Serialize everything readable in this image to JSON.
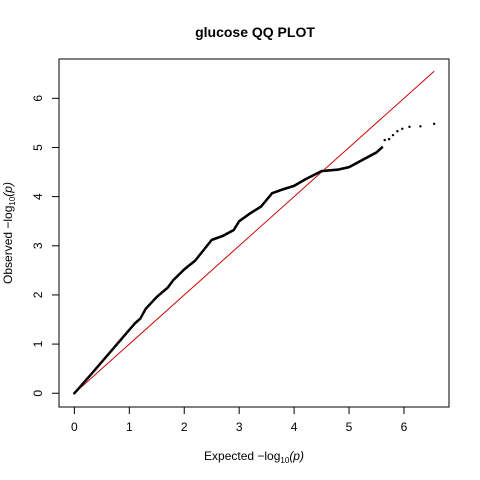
{
  "chart_data": {
    "type": "scatter",
    "title": "glucose QQ PLOT",
    "xlabel": {
      "prefix": "Expected  −log",
      "sub": "10",
      "suffix": "(p)"
    },
    "ylabel": {
      "prefix": "Observed  −log",
      "sub": "10",
      "suffix": "(p)"
    },
    "xlim": [
      -0.28,
      6.82
    ],
    "ylim": [
      -0.28,
      6.8
    ],
    "x_ticks": [
      0,
      1,
      2,
      3,
      4,
      5,
      6
    ],
    "y_ticks": [
      0,
      1,
      2,
      3,
      4,
      5,
      6
    ],
    "grid": false,
    "legend": "none",
    "reference_line": {
      "x": [
        0,
        6.55
      ],
      "y": [
        0,
        6.55
      ],
      "color": "#cc0000"
    },
    "points_color": "#000000",
    "observed_curve": {
      "x": [
        0,
        0.3,
        0.6,
        0.9,
        1.1,
        1.2,
        1.3,
        1.5,
        1.7,
        1.8,
        2.0,
        2.2,
        2.5,
        2.7,
        2.9,
        3.0,
        3.2,
        3.4,
        3.6,
        3.8,
        4.0,
        4.2,
        4.5,
        4.8,
        5.0,
        5.3,
        5.5,
        5.6
      ],
      "y": [
        0,
        0.38,
        0.77,
        1.16,
        1.42,
        1.52,
        1.72,
        1.96,
        2.15,
        2.3,
        2.52,
        2.7,
        3.12,
        3.2,
        3.32,
        3.5,
        3.66,
        3.8,
        4.07,
        4.15,
        4.22,
        4.35,
        4.52,
        4.55,
        4.6,
        4.78,
        4.9,
        5.0
      ]
    },
    "tail_points": {
      "x": [
        5.65,
        5.73,
        5.8,
        5.88,
        5.97,
        6.1,
        6.3,
        6.55
      ],
      "y": [
        5.15,
        5.17,
        5.25,
        5.33,
        5.38,
        5.42,
        5.43,
        5.48
      ]
    }
  }
}
